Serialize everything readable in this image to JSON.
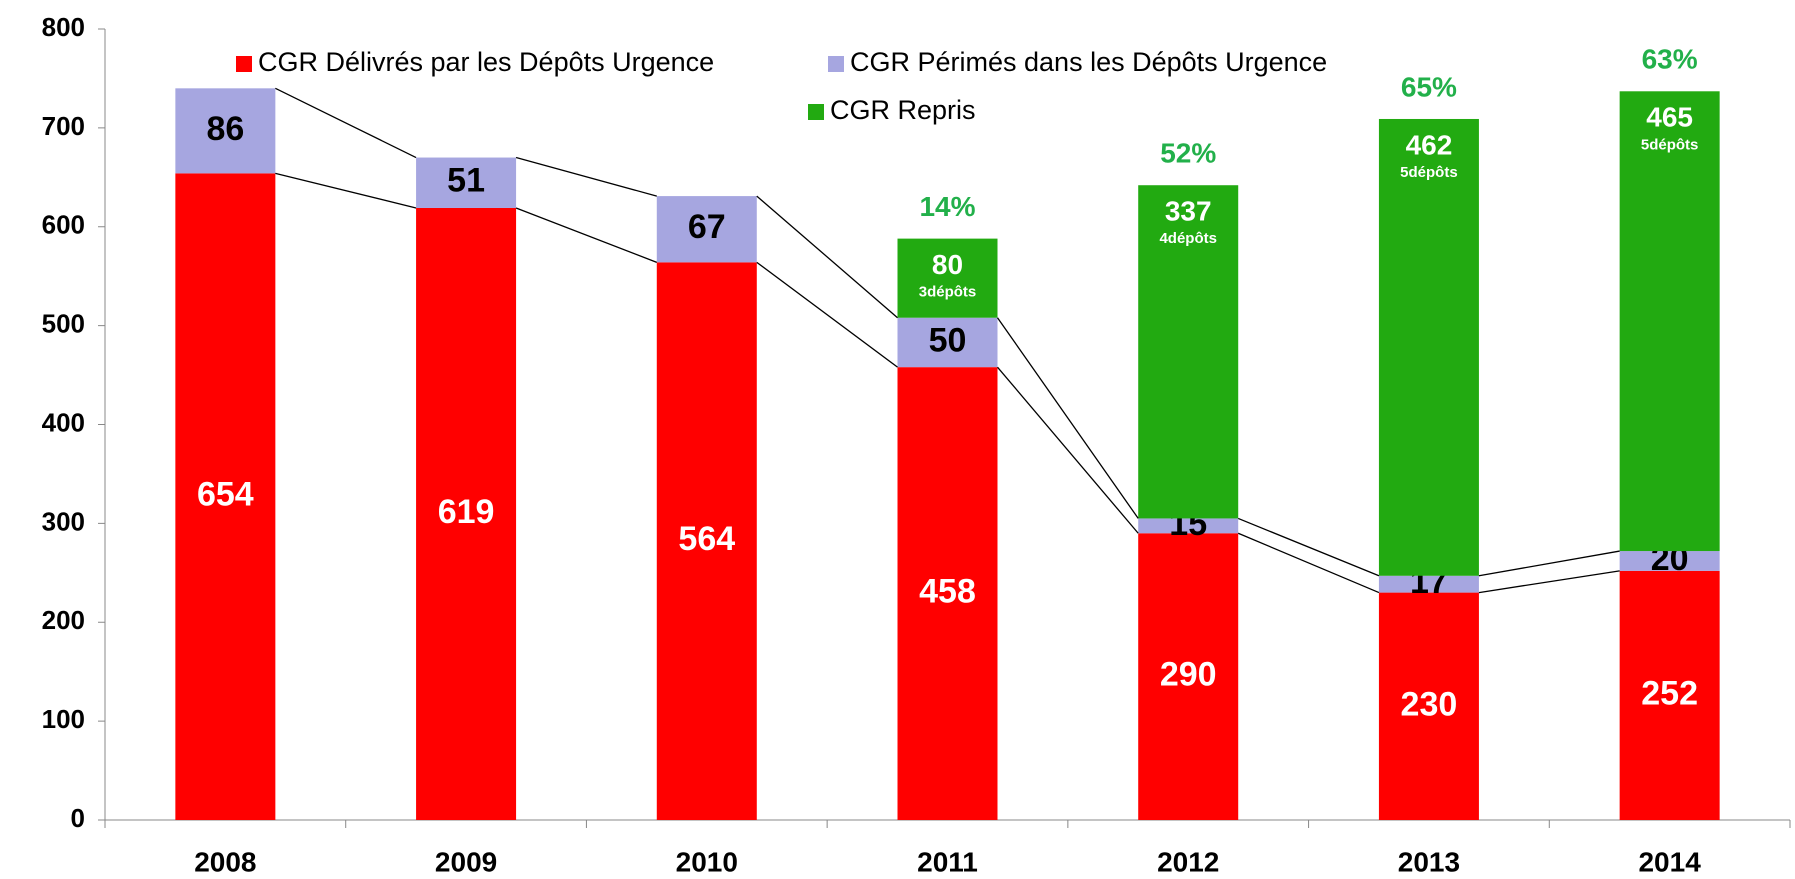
{
  "chart_data": {
    "type": "bar",
    "stacked": true,
    "categories": [
      "2008",
      "2009",
      "2010",
      "2011",
      "2012",
      "2013",
      "2014"
    ],
    "series": [
      {
        "name": "CGR Délivrés par les Dépôts Urgence",
        "color": "#ff0000",
        "values": [
          654,
          619,
          564,
          458,
          290,
          230,
          252
        ]
      },
      {
        "name": "CGR Périmés dans les Dépôts Urgence",
        "color": "#a6a6e0",
        "values": [
          86,
          51,
          67,
          50,
          15,
          17,
          20
        ]
      },
      {
        "name": "CGR Repris",
        "color": "#22aa11",
        "values": [
          null,
          null,
          null,
          80,
          337,
          462,
          465
        ]
      }
    ],
    "depot_labels": [
      null,
      null,
      null,
      "3dépôts",
      "4dépôts",
      "5dépôts",
      "5dépôts"
    ],
    "percent_labels": [
      null,
      null,
      null,
      "14%",
      "52%",
      "65%",
      "63%"
    ],
    "ylim": [
      0,
      800
    ],
    "yticks": [
      0,
      100,
      200,
      300,
      400,
      500,
      600,
      700,
      800
    ],
    "grid": false
  }
}
